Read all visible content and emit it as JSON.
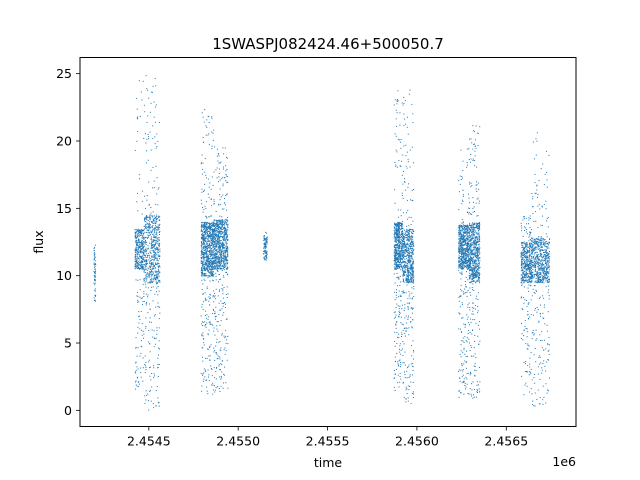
{
  "chart_data": {
    "type": "scatter",
    "title": "1SWASPJ082424.46+500050.7",
    "xlabel": "time",
    "ylabel": "flux",
    "x_offset_label": "1e6",
    "xlim": [
      2454115,
      2456890
    ],
    "ylim": [
      -1.2,
      26.2
    ],
    "x_ticks": [
      2454500,
      2455000,
      2455500,
      2456000,
      2456500
    ],
    "x_tick_labels": [
      "2.4545",
      "2.4550",
      "2.4555",
      "2.4560",
      "2.4565"
    ],
    "y_ticks": [
      0,
      5,
      10,
      15,
      20,
      25
    ],
    "y_tick_labels": [
      "0",
      "5",
      "10",
      "15",
      "20",
      "25"
    ],
    "grid": false,
    "marker_color": "#1f77b4",
    "series": [
      {
        "values_description_free": true,
        "clusters": [
          {
            "x_start": 2454190,
            "x_end": 2454200,
            "y_low": 8.1,
            "y_high": 12.6,
            "core_low": 8.5,
            "core_high": 12.0,
            "n": 60
          },
          {
            "x_start": 2454420,
            "x_end": 2454470,
            "y_low": 1.5,
            "y_high": 24.9,
            "core_low": 10.5,
            "core_high": 13.5,
            "n": 420
          },
          {
            "x_start": 2454470,
            "x_end": 2454560,
            "y_low": 0.0,
            "y_high": 25.0,
            "core_low": 9.5,
            "core_high": 14.5,
            "n": 700
          },
          {
            "x_start": 2454790,
            "x_end": 2454860,
            "y_low": 1.2,
            "y_high": 22.5,
            "core_low": 10.0,
            "core_high": 14.0,
            "n": 900
          },
          {
            "x_start": 2454860,
            "x_end": 2454940,
            "y_low": 1.3,
            "y_high": 19.6,
            "core_low": 10.5,
            "core_high": 14.2,
            "n": 900
          },
          {
            "x_start": 2455140,
            "x_end": 2455160,
            "y_low": 11.2,
            "y_high": 13.4,
            "core_low": 11.5,
            "core_high": 13.0,
            "n": 90
          },
          {
            "x_start": 2455870,
            "x_end": 2455920,
            "y_low": 1.4,
            "y_high": 24.5,
            "core_low": 10.5,
            "core_high": 14.0,
            "n": 650
          },
          {
            "x_start": 2455920,
            "x_end": 2455980,
            "y_low": 0.4,
            "y_high": 24.2,
            "core_low": 9.5,
            "core_high": 13.5,
            "n": 650
          },
          {
            "x_start": 2456230,
            "x_end": 2456290,
            "y_low": 1.0,
            "y_high": 19.5,
            "core_low": 10.5,
            "core_high": 13.8,
            "n": 700
          },
          {
            "x_start": 2456290,
            "x_end": 2456350,
            "y_low": 0.8,
            "y_high": 21.3,
            "core_low": 9.5,
            "core_high": 14.0,
            "n": 700
          },
          {
            "x_start": 2456580,
            "x_end": 2456640,
            "y_low": 1.2,
            "y_high": 14.5,
            "core_low": 9.5,
            "core_high": 12.5,
            "n": 500
          },
          {
            "x_start": 2456640,
            "x_end": 2456740,
            "y_low": 0.3,
            "y_high": 20.7,
            "core_low": 9.5,
            "core_high": 12.8,
            "n": 700
          }
        ]
      }
    ]
  }
}
